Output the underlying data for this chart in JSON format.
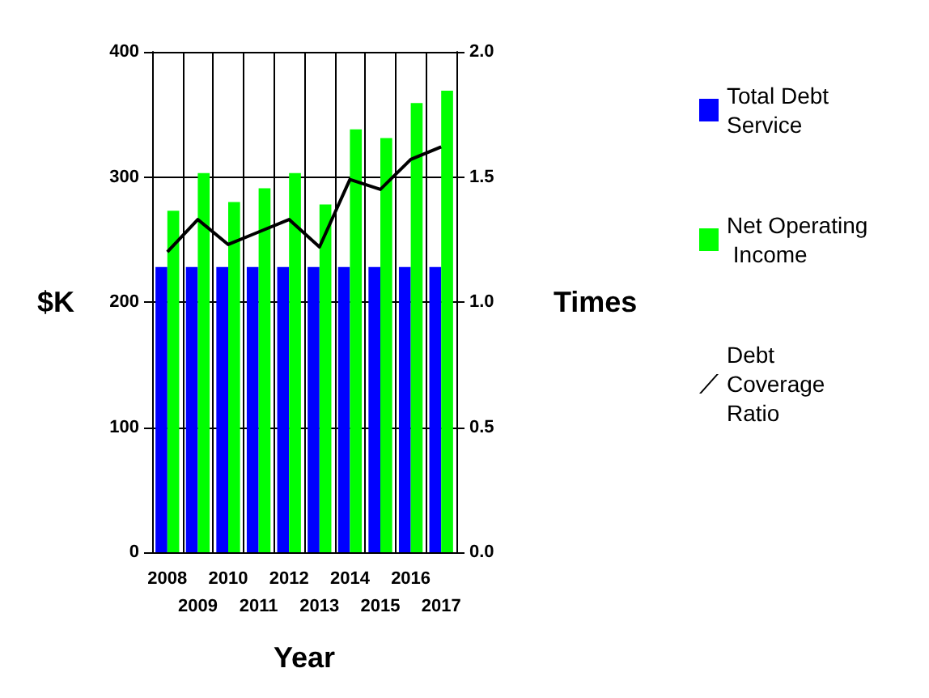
{
  "chart_data": {
    "type": "bar",
    "xlabel": "Year",
    "ylabel": "$K",
    "y2label": "Times",
    "categories": [
      "2008",
      "2009",
      "2010",
      "2011",
      "2012",
      "2013",
      "2014",
      "2015",
      "2016",
      "2017"
    ],
    "series": [
      {
        "name": "Total Debt Service",
        "color": "#0000ff",
        "values": [
          228,
          228,
          228,
          228,
          228,
          228,
          228,
          228,
          228,
          228
        ]
      },
      {
        "name": "Net Operating Income",
        "color": "#00ff00",
        "values": [
          273,
          303,
          280,
          291,
          303,
          278,
          338,
          331,
          359,
          369
        ]
      },
      {
        "name": "Debt Coverage Ratio",
        "type": "line",
        "axis": "y2",
        "color": "#000000",
        "values": [
          1.2,
          1.33,
          1.23,
          1.28,
          1.33,
          1.22,
          1.49,
          1.45,
          1.57,
          1.62
        ]
      }
    ],
    "ylim": [
      0,
      400
    ],
    "yticks": [
      0,
      100,
      200,
      300,
      400
    ],
    "y2lim": [
      0,
      2.0
    ],
    "y2ticks": [
      {
        "value": 0,
        "label": "0.0"
      },
      {
        "value": 0.5,
        "label": "0.5"
      },
      {
        "value": 1,
        "label": "1.0"
      },
      {
        "value": 1.5,
        "label": "1.5"
      },
      {
        "value": 2,
        "label": "2.0"
      }
    ],
    "grid": true,
    "legend": "right",
    "marker": "none",
    "line_style": "solid"
  }
}
